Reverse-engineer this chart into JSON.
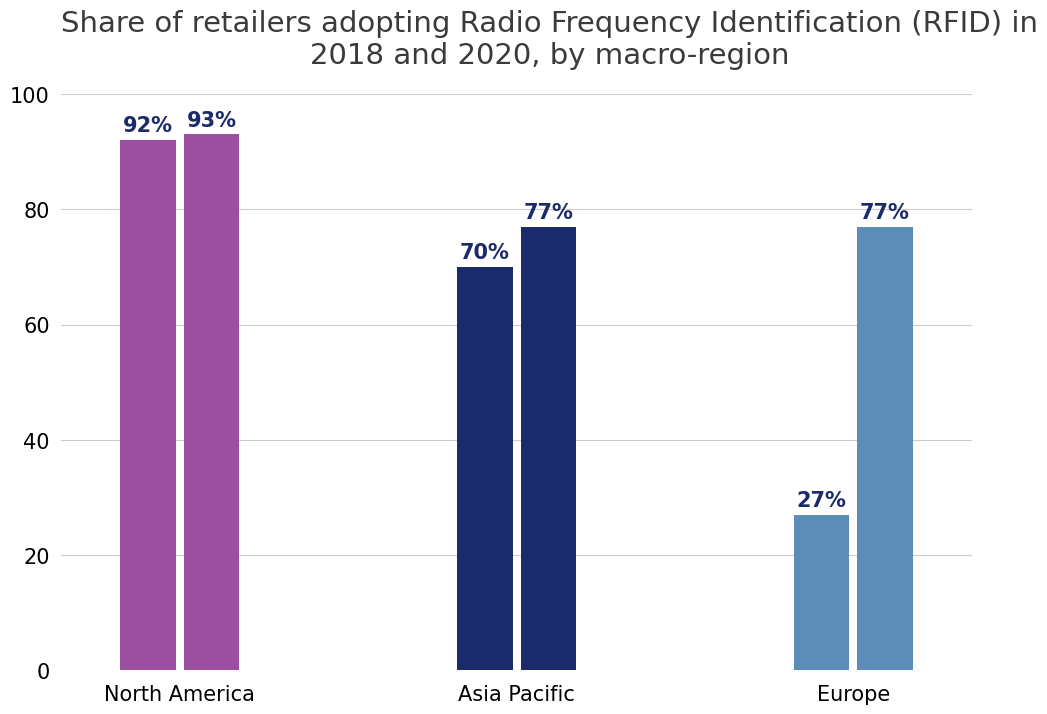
{
  "title": "Share of retailers adopting Radio Frequency Identification (RFID) in\n2018 and 2020, by macro-region",
  "categories": [
    "North America",
    "Asia Pacific",
    "Europe"
  ],
  "values_2018": [
    92,
    70,
    27
  ],
  "values_2020": [
    93,
    77,
    77
  ],
  "labels_2018": [
    "92%",
    "70%",
    "27%"
  ],
  "labels_2020": [
    "93%",
    "77%",
    "77%"
  ],
  "color_north_america": "#9B4FA0",
  "color_asia_pacific": "#1B2A6B",
  "color_europe": "#5B8DB8",
  "ylim": [
    0,
    100
  ],
  "yticks": [
    0,
    20,
    40,
    60,
    80,
    100
  ],
  "bar_width": 0.28,
  "group_centers": [
    0.5,
    2.2,
    3.9
  ],
  "label_color": "#1B2A6B",
  "title_fontsize": 21,
  "label_fontsize": 15,
  "tick_fontsize": 15,
  "background_color": "#ffffff",
  "grid_color": "#cccccc"
}
